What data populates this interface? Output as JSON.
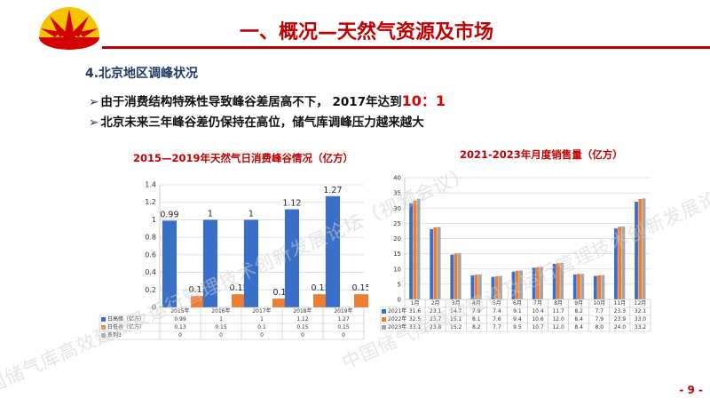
{
  "header": {
    "title": "一、概况—天然气资源及市场",
    "brand_color": "#c00000"
  },
  "section": {
    "heading": "4.北京地区调峰状况",
    "bullets": [
      {
        "text": "由于消费结构特殊性导致峰谷差居高不下， 2017年达到",
        "highlight": "10：1"
      },
      {
        "text": "北京未来三年峰谷差仍保持在高位，储气库调峰压力越来越大",
        "highlight": ""
      }
    ]
  },
  "watermark": "中国储气库高效建设及运行管理技术创新发展论坛（视频会议）",
  "page_number": "- 9 -",
  "chart_data": [
    {
      "type": "bar",
      "title": "2015—2019年天然气日消费峰谷情况（亿方）",
      "categories": [
        "2015年",
        "2016年",
        "2017年",
        "2018年",
        "2019年"
      ],
      "series": [
        {
          "name": "日高峰（亿方）",
          "values": [
            0.99,
            1,
            1,
            1.12,
            1.27
          ],
          "labels": [
            "0.99",
            "1",
            "1",
            "1.12",
            "1.27"
          ],
          "color": "#3a6fc9"
        },
        {
          "name": "日低谷（亿方）",
          "values": [
            0.13,
            0.15,
            0.1,
            0.15,
            0.15
          ],
          "labels": [
            "0.13",
            "0.15",
            "0.1",
            "0.15",
            "0.15"
          ],
          "color": "#ed7d31"
        },
        {
          "name": "系列3",
          "values": [
            0,
            0,
            0,
            0,
            0
          ],
          "labels": [
            "0",
            "0",
            "0",
            "0",
            "0"
          ],
          "color": "#a5a5a5"
        }
      ],
      "table_values": [
        [
          "0.99",
          "1",
          "1",
          "1.12",
          "1.27"
        ],
        [
          "0.13",
          "0.15",
          "0.1",
          "0.15",
          "0.15"
        ],
        [
          "0",
          "0",
          "0",
          "0",
          "0"
        ]
      ],
      "ylim": [
        0,
        1.4
      ],
      "yticks": [
        "0",
        "0.2",
        "0.4",
        "0.6",
        "0.8",
        "1",
        "1.2",
        "1.4"
      ],
      "grid": true,
      "legend": "data-table"
    },
    {
      "type": "bar",
      "title": "2021-2023年月度销售量（亿方）",
      "categories": [
        "1月",
        "2月",
        "3月",
        "4月",
        "5月",
        "6月",
        "7月",
        "8月",
        "9月",
        "10月",
        "11月",
        "12月"
      ],
      "series": [
        {
          "name": "2021年",
          "values": [
            31.6,
            23.1,
            14.7,
            7.9,
            7.4,
            9.1,
            10.4,
            11.7,
            8.2,
            7.7,
            23.3,
            32.1
          ],
          "color": "#3a6fc9"
        },
        {
          "name": "2022年",
          "values": [
            32.5,
            23.7,
            15.1,
            8.1,
            7.6,
            9.4,
            10.6,
            12.0,
            8.4,
            7.9,
            23.9,
            33.0
          ],
          "color": "#ed7d31"
        },
        {
          "name": "2023年",
          "values": [
            33.1,
            23.8,
            15.2,
            8.2,
            7.7,
            9.5,
            10.7,
            12.0,
            8.4,
            8.0,
            24.0,
            33.2
          ],
          "color": "#a5a5a5"
        }
      ],
      "table_values": [
        [
          "31.6",
          "23.1",
          "14.7",
          "7.9",
          "7.4",
          "9.1",
          "10.4",
          "11.7",
          "8.2",
          "7.7",
          "23.3",
          "32.1"
        ],
        [
          "32.5",
          "23.7",
          "15.1",
          "8.1",
          "7.6",
          "9.4",
          "10.6",
          "12.0",
          "8.4",
          "7.9",
          "23.9",
          "33.0"
        ],
        [
          "33.1",
          "23.8",
          "15.2",
          "8.2",
          "7.7",
          "9.5",
          "10.7",
          "12.0",
          "8.4",
          "8.0",
          "24.0",
          "33.2"
        ]
      ],
      "ylim": [
        0,
        40
      ],
      "yticks": [
        "0",
        "5",
        "10",
        "15",
        "20",
        "25",
        "30",
        "35",
        "40"
      ],
      "grid": true,
      "legend": "data-table"
    }
  ]
}
